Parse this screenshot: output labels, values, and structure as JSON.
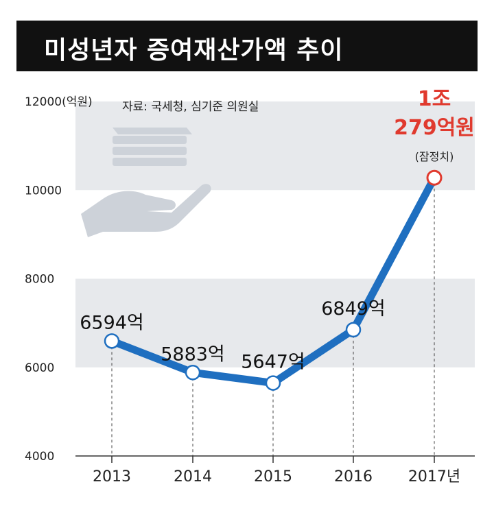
{
  "header": {
    "title": "미성년자 증여재산가액 추이"
  },
  "source_note": "자료: 국세청, 심기준 의원실",
  "chart_data": {
    "type": "line",
    "title": "미성년자 증여재산가액 추이",
    "categories": [
      "2013",
      "2014",
      "2015",
      "2016",
      "2017년"
    ],
    "values": [
      6594,
      5883,
      5647,
      6849,
      10279
    ],
    "data_labels": [
      "6594억",
      "5883억",
      "5647억",
      "6849억",
      ""
    ],
    "y_unit_label": "12000(억원)",
    "yticks": [
      {
        "value": 4000,
        "label": "4000"
      },
      {
        "value": 6000,
        "label": "6000"
      },
      {
        "value": 8000,
        "label": "8000"
      },
      {
        "value": 10000,
        "label": "10000"
      },
      {
        "value": 12000,
        "label": "12000(억원)"
      }
    ],
    "ylim": [
      4000,
      12000
    ],
    "highlight": {
      "line1": "1조",
      "line2": "279억원",
      "line3": "(잠정치)"
    },
    "grid": "alternating bands",
    "colors": {
      "line": "#1f6fc0",
      "marker_stroke": "#1f6fc0",
      "highlight_marker": "#e03a2e",
      "highlight_text": "#e03a2e",
      "band": "#e7e9ec",
      "header_bg": "#111111"
    },
    "icon": "money-hand-icon"
  }
}
